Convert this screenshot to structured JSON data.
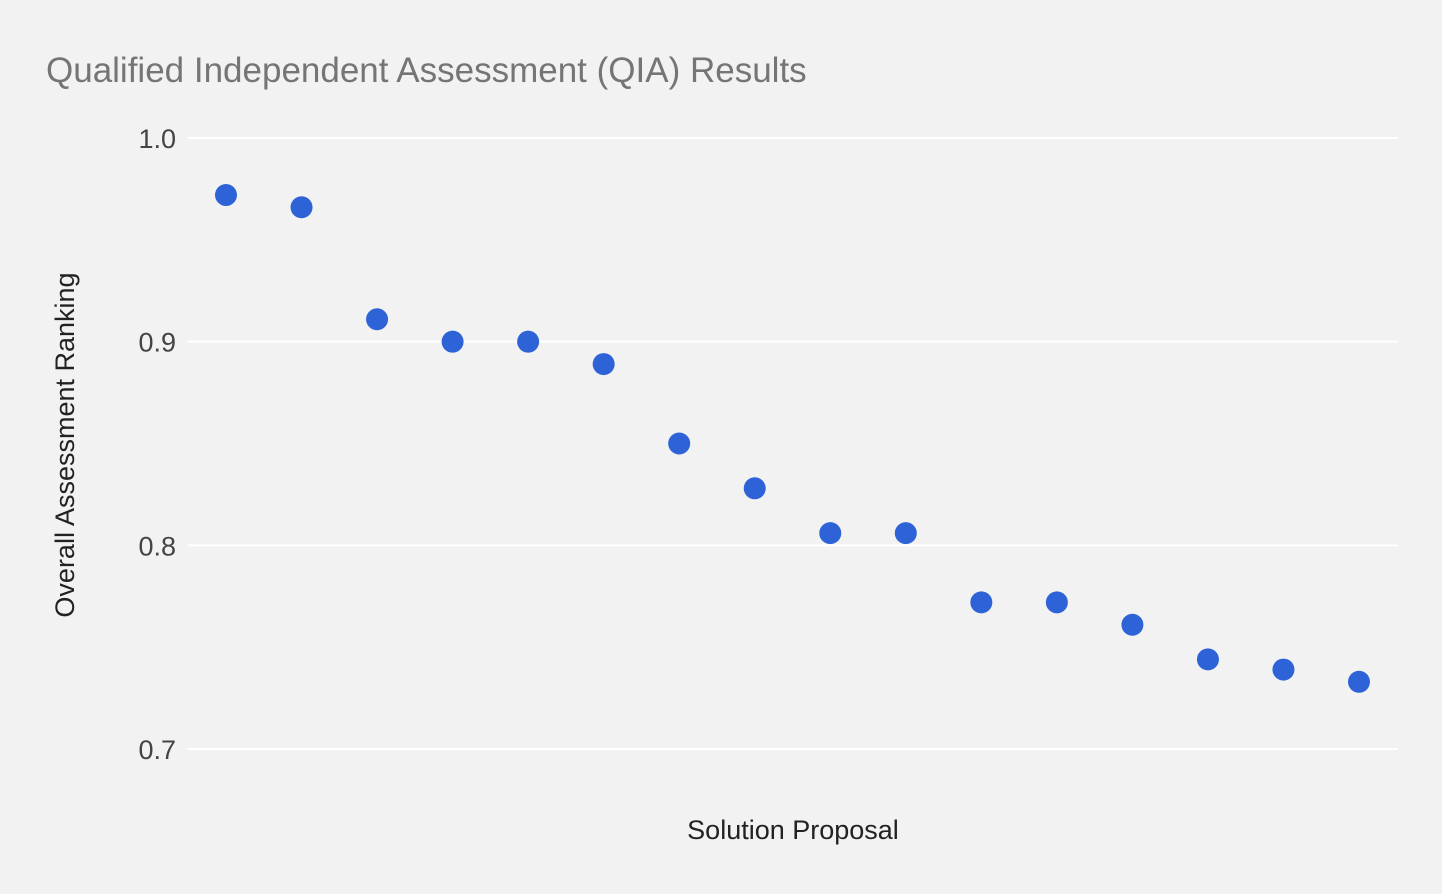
{
  "chart_data": {
    "type": "scatter",
    "title": "Qualified Independent Assessment (QIA) Results",
    "xlabel": "Solution Proposal",
    "ylabel": "Overall Assessment Ranking",
    "ylim": [
      0.7,
      1.0
    ],
    "yticks": [
      "1.0",
      "0.9",
      "0.8",
      "0.7"
    ],
    "grid": true,
    "x": [
      1,
      2,
      3,
      4,
      5,
      6,
      7,
      8,
      9,
      10,
      11,
      12,
      13,
      14,
      15,
      16
    ],
    "series": [
      {
        "values": [
          0.972,
          0.966,
          0.911,
          0.9,
          0.9,
          0.889,
          0.85,
          0.828,
          0.806,
          0.806,
          0.772,
          0.772,
          0.761,
          0.744,
          0.739,
          0.733
        ],
        "color": "#2d63d6"
      }
    ]
  }
}
